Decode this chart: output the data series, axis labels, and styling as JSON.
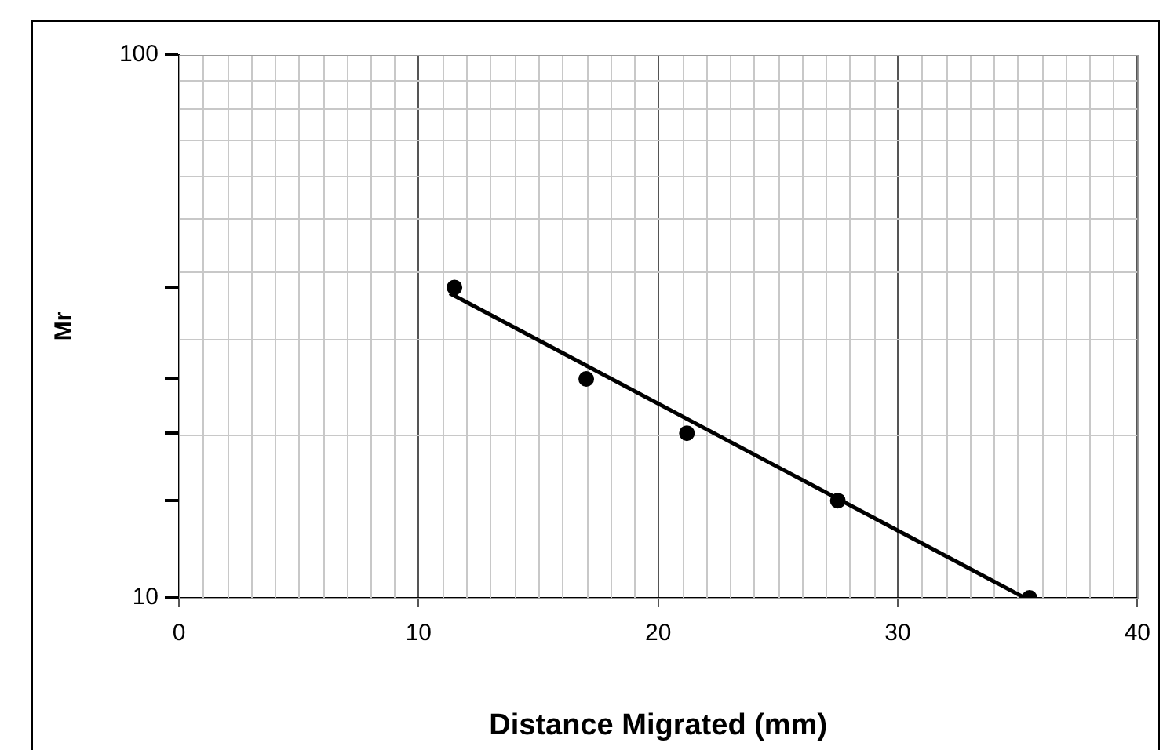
{
  "chart_data": {
    "type": "scatter",
    "xlabel": "Distance Migrated (mm)",
    "ylabel": "Mr",
    "xlim": [
      0,
      40
    ],
    "xticks": [
      0,
      10,
      20,
      30,
      40
    ],
    "ylim": [
      10,
      100
    ],
    "yticks": [
      10,
      {
        "value": 15.1,
        "label": null
      },
      {
        "value": 20.1,
        "label": null
      },
      {
        "value": 25.3,
        "label": null
      },
      {
        "value": 37.3,
        "label": null
      },
      100
    ],
    "log": "y",
    "grid": true,
    "series": [
      {
        "marker": "circle",
        "color": "#000000",
        "x": [
          11.5,
          17.0,
          21.2,
          27.5,
          35.5
        ],
        "values": [
          37.3,
          25.3,
          20.1,
          15.1,
          10
        ]
      },
      {
        "type": "line",
        "marker": "none",
        "color": "#000000",
        "x": [
          11.3,
          35.3
        ],
        "values": [
          36.4,
          10
        ]
      }
    ]
  }
}
